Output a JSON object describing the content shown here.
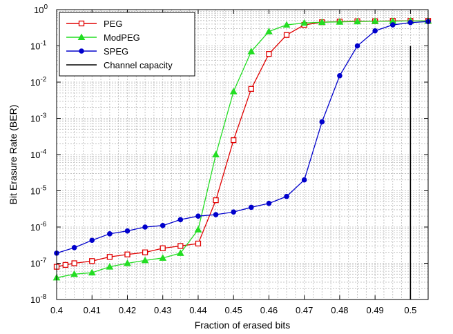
{
  "chart_data": {
    "type": "line",
    "title": "",
    "xlabel": "Fraction of erased bits",
    "ylabel": "Bit Erasure Rate (BER)",
    "xlim": [
      0.4,
      0.505
    ],
    "ylim": [
      1e-08,
      1
    ],
    "yscale": "log",
    "grid": true,
    "legend_position": "top-left",
    "x_ticks": [
      0.4,
      0.41,
      0.42,
      0.43,
      0.44,
      0.45,
      0.46,
      0.47,
      0.48,
      0.49,
      0.5
    ],
    "x_tick_labels": [
      "0.4",
      "0.41",
      "0.42",
      "0.43",
      "0.44",
      "0.45",
      "0.46",
      "0.47",
      "0.48",
      "0.49",
      "0.5"
    ],
    "y_ticks": [
      {
        "value": 1e-08,
        "base": "10",
        "exp": "-8"
      },
      {
        "value": 1e-07,
        "base": "10",
        "exp": "-7"
      },
      {
        "value": 1e-06,
        "base": "10",
        "exp": "-6"
      },
      {
        "value": 1e-05,
        "base": "10",
        "exp": "-5"
      },
      {
        "value": 0.0001,
        "base": "10",
        "exp": "-4"
      },
      {
        "value": 0.001,
        "base": "10",
        "exp": "-3"
      },
      {
        "value": 0.01,
        "base": "10",
        "exp": "-2"
      },
      {
        "value": 0.1,
        "base": "10",
        "exp": "-1"
      },
      {
        "value": 1,
        "base": "10",
        "exp": "0"
      }
    ],
    "series": [
      {
        "name": "PEG",
        "color": "#e00000",
        "marker": "square",
        "x": [
          0.4,
          0.4025,
          0.405,
          0.41,
          0.415,
          0.42,
          0.425,
          0.43,
          0.435,
          0.44,
          0.445,
          0.45,
          0.455,
          0.46,
          0.465,
          0.47,
          0.475,
          0.48,
          0.485,
          0.49,
          0.495,
          0.5,
          0.505
        ],
        "y": [
          8e-08,
          9e-08,
          1e-07,
          1.15e-07,
          1.5e-07,
          1.75e-07,
          2e-07,
          2.6e-07,
          3e-07,
          3.5e-07,
          5.5e-06,
          0.00025,
          0.0065,
          0.06,
          0.2,
          0.38,
          0.45,
          0.47,
          0.48,
          0.48,
          0.49,
          0.49,
          0.49
        ]
      },
      {
        "name": "ModPEG",
        "color": "#22dd22",
        "marker": "triangle",
        "x": [
          0.4,
          0.405,
          0.41,
          0.415,
          0.42,
          0.425,
          0.43,
          0.435,
          0.44,
          0.445,
          0.45,
          0.455,
          0.46,
          0.465,
          0.47,
          0.475,
          0.48,
          0.485,
          0.49,
          0.495,
          0.5,
          0.505
        ],
        "y": [
          4e-08,
          5e-08,
          5.5e-08,
          8e-08,
          1e-07,
          1.2e-07,
          1.4e-07,
          1.9e-07,
          8.5e-07,
          0.0001,
          0.0055,
          0.07,
          0.25,
          0.38,
          0.43,
          0.45,
          0.46,
          0.47,
          0.48,
          0.48,
          0.49,
          0.49
        ]
      },
      {
        "name": "SPEG",
        "color": "#0000cc",
        "marker": "circle",
        "x": [
          0.4,
          0.405,
          0.41,
          0.415,
          0.42,
          0.425,
          0.43,
          0.435,
          0.44,
          0.445,
          0.45,
          0.455,
          0.46,
          0.465,
          0.47,
          0.475,
          0.48,
          0.485,
          0.49,
          0.495,
          0.5,
          0.505
        ],
        "y": [
          1.9e-07,
          2.7e-07,
          4.3e-07,
          6.5e-07,
          7.8e-07,
          1e-06,
          1.1e-06,
          1.6e-06,
          2e-06,
          2.2e-06,
          2.6e-06,
          3.5e-06,
          4.5e-06,
          7e-06,
          2e-05,
          0.0008,
          0.015,
          0.1,
          0.26,
          0.38,
          0.44,
          0.47
        ]
      },
      {
        "name": "Channel capacity",
        "color": "#000000",
        "marker": "none",
        "x": [
          0.5,
          0.5
        ],
        "y": [
          1e-08,
          0.1
        ]
      }
    ]
  }
}
